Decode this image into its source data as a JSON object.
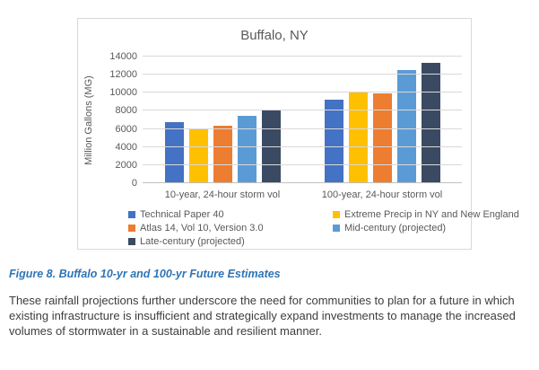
{
  "chart_data": {
    "type": "bar",
    "title": "Buffalo, NY",
    "ylabel": "Million Gallons (MG)",
    "xlabel": "",
    "categories": [
      "10-year, 24-hour storm vol",
      "100-year, 24-hour storm vol"
    ],
    "series": [
      {
        "name": "Technical Paper 40",
        "color": "#4472c4",
        "values": [
          6650,
          9150
        ]
      },
      {
        "name": "Extreme Precip in NY and New England",
        "color": "#ffc000",
        "values": [
          6000,
          9900
        ]
      },
      {
        "name": "Atlas 14, Vol 10, Version 3.0",
        "color": "#ed7d31",
        "values": [
          6300,
          9850
        ]
      },
      {
        "name": "Mid-century (projected)",
        "color": "#5b9bd5",
        "values": [
          7300,
          12400
        ]
      },
      {
        "name": "Late-century (projected)",
        "color": "#3b4a63",
        "values": [
          7950,
          13250
        ]
      }
    ],
    "ylim": [
      0,
      14000
    ],
    "yticks": [
      0,
      2000,
      4000,
      6000,
      8000,
      10000,
      12000,
      14000
    ],
    "grid": true,
    "legend_position": "bottom"
  },
  "figure": {
    "caption": "Figure 8. Buffalo 10-yr and 100-yr Future Estimates",
    "body_text": "These rainfall projections further underscore the need for communities to plan for a future in which existing infrastructure is insufficient and strategically expand investments to manage the increased volumes of stormwater in a sustainable and resilient manner."
  },
  "colors": {
    "caption_blue": "#2e74b5",
    "axis_text_gray": "#595959",
    "gridline_gray": "#d9d9d9"
  }
}
